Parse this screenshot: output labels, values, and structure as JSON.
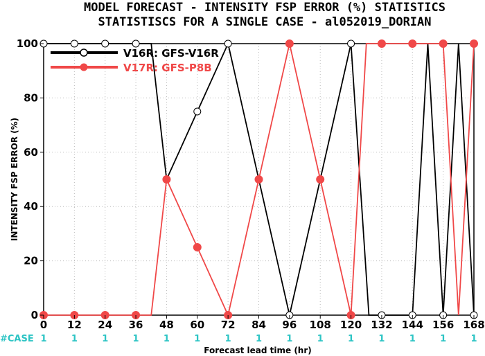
{
  "chart_data": {
    "type": "line",
    "title": "MODEL FORECAST - INTENSITY FSP ERROR (%) STATISTICS",
    "subtitle": "STATISTISCS FOR A SINGLE CASE - al052019_DORIAN",
    "xlabel": "Forecast lead time (hr)",
    "ylabel": "INTENSITY FSP ERROR (%)",
    "xlim": [
      0,
      168
    ],
    "ylim": [
      0,
      100
    ],
    "x_ticks": [
      "0",
      "12",
      "24",
      "36",
      "48",
      "60",
      "72",
      "84",
      "96",
      "108",
      "120",
      "132",
      "144",
      "156",
      "168"
    ],
    "y_ticks": [
      "0",
      "20",
      "40",
      "60",
      "80",
      "100"
    ],
    "grid": true,
    "legend_position": "top-left",
    "case_label": "#CASE",
    "case_counts": [
      "1",
      "1",
      "1",
      "1",
      "1",
      "1",
      "1",
      "1",
      "1",
      "1",
      "1",
      "1",
      "1",
      "1",
      "1"
    ],
    "series": [
      {
        "name": "V16R: GFS-V16R",
        "color": "#000000",
        "marker": "open-circle",
        "x": [
          0,
          12,
          24,
          36,
          48,
          60,
          72,
          84,
          96,
          108,
          120,
          132,
          144,
          156,
          168
        ],
        "values": [
          100,
          100,
          100,
          100,
          50,
          75,
          100,
          50,
          0,
          50,
          100,
          0,
          0,
          0,
          0
        ]
      },
      {
        "name": "V17R: GFS-P8B",
        "color": "#f04848",
        "marker": "filled-circle",
        "x": [
          0,
          12,
          24,
          36,
          48,
          60,
          72,
          84,
          96,
          108,
          120,
          132,
          144,
          156,
          168
        ],
        "values": [
          0,
          0,
          0,
          0,
          50,
          25,
          0,
          50,
          100,
          50,
          0,
          100,
          100,
          100,
          100
        ]
      }
    ],
    "segments": [
      {
        "name": "V16R: GFS-V16R",
        "color": "#000000",
        "points": [
          [
            0,
            100
          ],
          [
            36,
            100
          ],
          [
            42,
            100
          ],
          [
            48,
            50
          ],
          [
            60,
            75
          ],
          [
            72,
            100
          ],
          [
            84,
            50
          ],
          [
            96,
            0
          ],
          [
            108,
            50
          ],
          [
            120,
            100
          ],
          [
            127,
            0
          ],
          [
            132,
            0
          ],
          [
            144,
            0
          ],
          [
            150,
            100
          ],
          [
            156,
            0
          ],
          [
            162,
            100
          ],
          [
            168,
            0
          ]
        ]
      },
      {
        "name": "V17R: GFS-P8B",
        "color": "#f04848",
        "points": [
          [
            0,
            0
          ],
          [
            36,
            0
          ],
          [
            42,
            0
          ],
          [
            48,
            50
          ],
          [
            60,
            25
          ],
          [
            72,
            0
          ],
          [
            84,
            50
          ],
          [
            96,
            100
          ],
          [
            108,
            50
          ],
          [
            120,
            0
          ],
          [
            126,
            100
          ],
          [
            132,
            100
          ],
          [
            144,
            100
          ],
          [
            149,
            100
          ],
          [
            156,
            100
          ],
          [
            162,
            0
          ],
          [
            168,
            100
          ]
        ]
      }
    ]
  }
}
